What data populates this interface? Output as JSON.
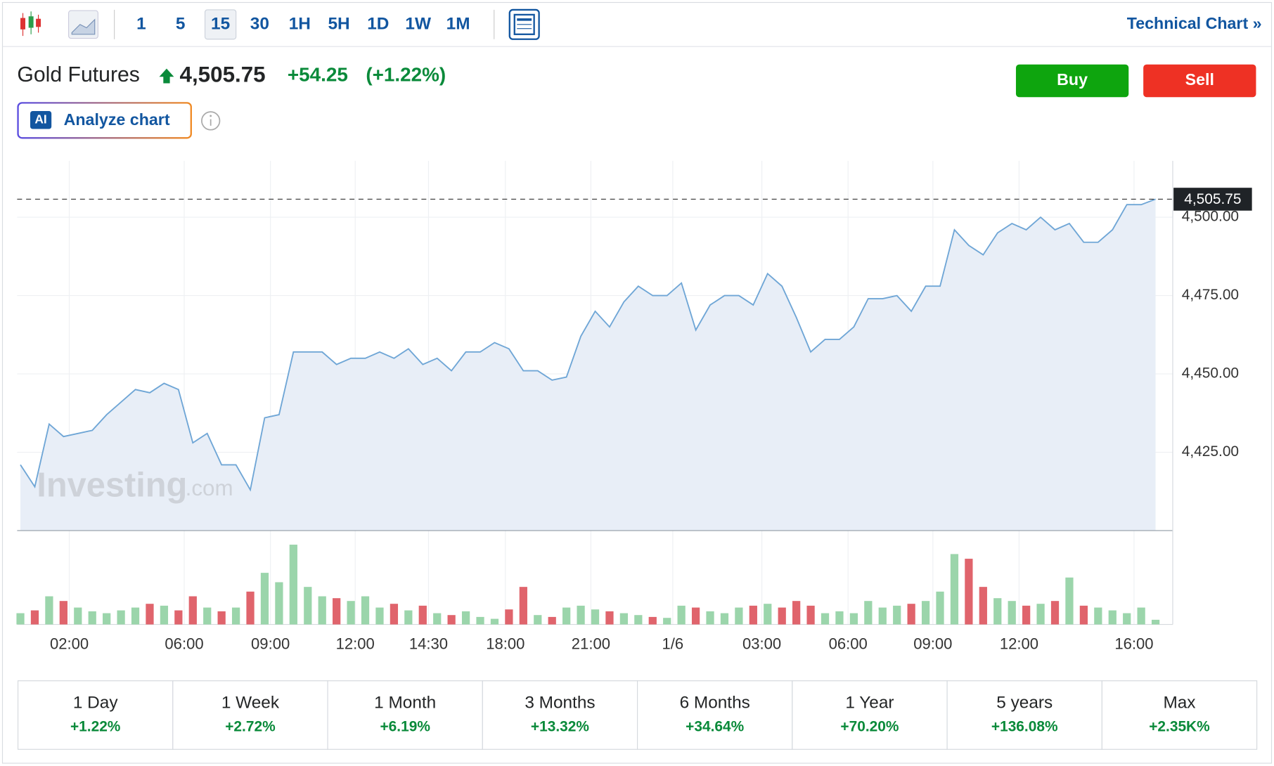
{
  "toolbar": {
    "intervals": [
      "1",
      "5",
      "15",
      "30",
      "1H",
      "5H",
      "1D",
      "1W",
      "1M"
    ],
    "selected": 2,
    "technical_chart": "Technical Chart »"
  },
  "header": {
    "name": "Gold Futures",
    "price": "4,505.75",
    "change": "+54.25",
    "change_pct": "(+1.22%)",
    "buy": "Buy",
    "sell": "Sell",
    "ai_badge": "AI",
    "analyze": "Analyze chart"
  },
  "watermark": {
    "brand": "Investing",
    "suffix": ".com"
  },
  "periods": [
    {
      "label": "1 Day",
      "change": "+1.22%"
    },
    {
      "label": "1 Week",
      "change": "+2.72%"
    },
    {
      "label": "1 Month",
      "change": "+6.19%"
    },
    {
      "label": "3 Months",
      "change": "+13.32%"
    },
    {
      "label": "6 Months",
      "change": "+34.64%"
    },
    {
      "label": "1 Year",
      "change": "+70.20%"
    },
    {
      "label": "5 years",
      "change": "+136.08%"
    },
    {
      "label": "Max",
      "change": "+2.35K%"
    }
  ],
  "chart_data": {
    "type": "area",
    "x": [
      0,
      1,
      2,
      3,
      4,
      5,
      6,
      7,
      8,
      9,
      10,
      11,
      12,
      13,
      14,
      15,
      16,
      17,
      18,
      19,
      20,
      21,
      22,
      23,
      24,
      25,
      26,
      27,
      28,
      29,
      30,
      31,
      32,
      33,
      34,
      35,
      36,
      37,
      38,
      39,
      40,
      41,
      42,
      43,
      44,
      45,
      46,
      47,
      48,
      49,
      50,
      51,
      52,
      53,
      54,
      55,
      56,
      57,
      58,
      59,
      60,
      61,
      62,
      63,
      64,
      65,
      66,
      67,
      68,
      69,
      70,
      71,
      72,
      73,
      74,
      75,
      76,
      77,
      78,
      79
    ],
    "series": [
      {
        "color": "#6fa6d6",
        "fill": "#e8eef7",
        "values": [
          4421,
          4414,
          4434,
          4430,
          4431,
          4432,
          4437,
          4441,
          4445,
          4444,
          4447,
          4445,
          4428,
          4431,
          4421,
          4421,
          4413,
          4436,
          4437,
          4457,
          4457,
          4457,
          4453,
          4455,
          4455,
          4457,
          4455,
          4458,
          4453,
          4455,
          4451,
          4457,
          4457,
          4460,
          4458,
          4451,
          4451,
          4448,
          4449,
          4462,
          4470,
          4465,
          4473,
          4478,
          4475,
          4475,
          4479,
          4464,
          4472,
          4475,
          4475,
          4472,
          4482,
          4478,
          4468,
          4457,
          4461,
          4461,
          4465,
          4474,
          4474,
          4475,
          4470,
          4478,
          4478,
          4496,
          4491,
          4488,
          4495,
          4498,
          4496,
          4500,
          4496,
          4498,
          4492,
          4492,
          4496,
          4504,
          4504,
          4505.75
        ]
      }
    ],
    "volume": {
      "up_color": "#9bd5ab",
      "down_color": "#e0646c",
      "ylim": [
        0,
        100
      ],
      "values": [
        12,
        15,
        30,
        25,
        18,
        14,
        12,
        15,
        18,
        22,
        20,
        15,
        30,
        18,
        14,
        18,
        35,
        55,
        45,
        85,
        40,
        30,
        28,
        25,
        30,
        18,
        22,
        15,
        20,
        12,
        10,
        14,
        8,
        6,
        16,
        40,
        10,
        8,
        18,
        20,
        16,
        14,
        12,
        10,
        8,
        7,
        20,
        18,
        14,
        12,
        18,
        20,
        22,
        18,
        25,
        20,
        12,
        14,
        12,
        25,
        18,
        20,
        22,
        25,
        35,
        75,
        70,
        40,
        28,
        25,
        20,
        22,
        25,
        50,
        20,
        18,
        15,
        12,
        18,
        5
      ]
    },
    "last_value": 4505.75,
    "last_label": "4,505.75",
    "xlim": [
      0,
      79
    ],
    "xticks": [
      {
        "value": 3.4,
        "label": "02:00"
      },
      {
        "value": 11.4,
        "label": "06:00"
      },
      {
        "value": 17.4,
        "label": "09:00"
      },
      {
        "value": 23.3,
        "label": "12:00"
      },
      {
        "value": 28.4,
        "label": "14:30"
      },
      {
        "value": 33.75,
        "label": "18:00"
      },
      {
        "value": 39.7,
        "label": "21:00"
      },
      {
        "value": 45.4,
        "label": "1/6"
      },
      {
        "value": 51.6,
        "label": "03:00"
      },
      {
        "value": 57.6,
        "label": "06:00"
      },
      {
        "value": 63.5,
        "label": "09:00"
      },
      {
        "value": 69.5,
        "label": "12:00"
      },
      {
        "value": 77.5,
        "label": "16:00"
      }
    ],
    "ylim": [
      4400,
      4518
    ],
    "yticks": [
      {
        "value": 4425,
        "label": "4,425.00"
      },
      {
        "value": 4450,
        "label": "4,450.00"
      },
      {
        "value": 4475,
        "label": "4,475.00"
      },
      {
        "value": 4500,
        "label": "4,500.00"
      }
    ],
    "grid": true
  }
}
